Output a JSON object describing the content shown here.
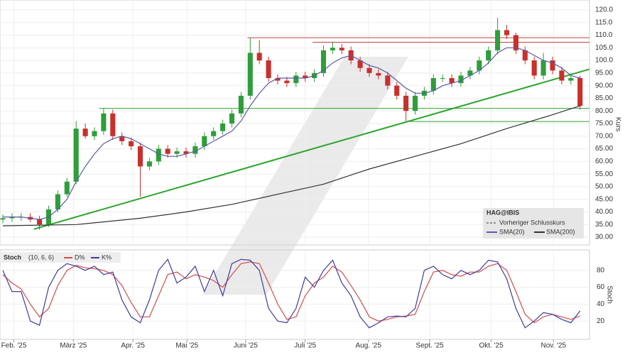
{
  "chart_data": [
    {
      "type": "candlestick",
      "symbol": "HAG@IBIS",
      "y_label": "Kurs",
      "legend_note": "Vorheriger Schlusskurs",
      "up_color": "#2e9e3a",
      "down_color": "#c8302c",
      "grid": true,
      "xlim": [
        0,
        64
      ],
      "ylim": [
        27,
        123
      ],
      "yticks": [
        {
          "value": 30,
          "label": "30.00"
        },
        {
          "value": 35,
          "label": "35.00"
        },
        {
          "value": 40,
          "label": "40.00"
        },
        {
          "value": 45,
          "label": "45.00"
        },
        {
          "value": 50,
          "label": "50.00"
        },
        {
          "value": 55,
          "label": "55.00"
        },
        {
          "value": 60,
          "label": "60.00"
        },
        {
          "value": 65,
          "label": "65.00"
        },
        {
          "value": 70,
          "label": "70.00"
        },
        {
          "value": 75,
          "label": "75.00"
        },
        {
          "value": 80,
          "label": "80.00"
        },
        {
          "value": 85,
          "label": "85.00"
        },
        {
          "value": 90,
          "label": "90.00"
        },
        {
          "value": 95,
          "label": "95.00"
        },
        {
          "value": 100,
          "label": "100.0"
        },
        {
          "value": 105,
          "label": "105.0"
        },
        {
          "value": 110,
          "label": "110.0"
        },
        {
          "value": 115,
          "label": "115.0"
        },
        {
          "value": 120,
          "label": "120.0"
        }
      ],
      "open": [
        37,
        37.5,
        38,
        38,
        37,
        35,
        41,
        47,
        52,
        73,
        70,
        72,
        79,
        70,
        68,
        66,
        58,
        60,
        65,
        63,
        64,
        63,
        66,
        70,
        72,
        75,
        79,
        86,
        103,
        100,
        93,
        92,
        91,
        94,
        93,
        95,
        104,
        105,
        104,
        100,
        97,
        95,
        94,
        90,
        86,
        80,
        86,
        88,
        93,
        93,
        91,
        94,
        96,
        100,
        104,
        112,
        110,
        104,
        100,
        94,
        100,
        96,
        92,
        93
      ],
      "high": [
        39,
        39.5,
        39.5,
        39.5,
        38.5,
        42.5,
        48.5,
        53.5,
        76,
        75,
        73.5,
        81,
        80.5,
        71.5,
        69.5,
        67.5,
        61.5,
        66.5,
        66.5,
        65.5,
        65.5,
        67.5,
        71.5,
        73.5,
        76.5,
        80.5,
        87.5,
        109,
        108,
        101.5,
        94.5,
        93.5,
        95.5,
        95.5,
        96.5,
        106,
        107.5,
        106.5,
        105.5,
        101.5,
        98.5,
        96.5,
        95.5,
        91.5,
        87.5,
        87.5,
        89.5,
        94.5,
        94.5,
        94.5,
        95.5,
        97.5,
        101.5,
        105.5,
        117,
        114,
        111,
        105.5,
        101.5,
        103,
        101.5,
        97.5,
        95,
        94
      ],
      "low": [
        35.5,
        36,
        36.5,
        36,
        33,
        34,
        40,
        46,
        51,
        69,
        68.5,
        70.5,
        68.5,
        66.5,
        64.5,
        46,
        56.5,
        58.5,
        61.5,
        61.5,
        61.5,
        61.5,
        64.5,
        68.5,
        70.5,
        73.5,
        77.5,
        84.5,
        98.5,
        91.5,
        90.5,
        89.5,
        89.5,
        91.5,
        91.5,
        93.5,
        102.5,
        102.5,
        98.5,
        95.5,
        93.5,
        92.5,
        88.5,
        84.5,
        76,
        78.5,
        84.5,
        86.5,
        91.5,
        89.5,
        89.5,
        92.5,
        94.5,
        98.5,
        102.5,
        108.5,
        102.5,
        98.5,
        92.5,
        92.5,
        94.5,
        90.5,
        90.5,
        80.5
      ],
      "close": [
        37.5,
        38,
        38,
        37,
        35,
        41,
        47,
        52,
        73,
        70,
        72,
        79,
        70,
        68,
        66,
        58,
        60,
        65,
        63,
        64,
        63,
        66,
        70,
        72,
        75,
        79,
        86,
        103,
        100,
        93,
        92,
        91,
        94,
        93,
        95,
        104,
        105,
        104,
        100,
        97,
        95,
        94,
        90,
        86,
        80,
        86,
        88,
        93,
        93,
        91,
        94,
        96,
        100,
        104,
        112,
        110,
        104,
        100,
        94,
        100,
        96,
        92,
        93,
        82
      ],
      "series": [
        {
          "name": "SMA(20)",
          "color": "#5a5aa8",
          "values": [
            38,
            38,
            38,
            37.5,
            37,
            38,
            41,
            45,
            52,
            58,
            63,
            67,
            69,
            70,
            69,
            67,
            65,
            63,
            62,
            62,
            63,
            64,
            66,
            68,
            70,
            72,
            76,
            82,
            87,
            91,
            93,
            93,
            93,
            93,
            94,
            96,
            99,
            101,
            102,
            100,
            98,
            97,
            95,
            92,
            89,
            87,
            87,
            88,
            90,
            91,
            92,
            94,
            96,
            99,
            103,
            105,
            105,
            104,
            102,
            100,
            99,
            97,
            94,
            93
          ]
        },
        {
          "name": "SMA(200)",
          "color": "#333333",
          "x": [
            0,
            8,
            15,
            20,
            25,
            30,
            35,
            40,
            45,
            50,
            55,
            60,
            63
          ],
          "values": [
            34.5,
            35,
            37.5,
            40,
            43,
            47,
            51,
            57,
            62,
            67,
            73,
            78.5,
            82
          ]
        }
      ],
      "trendlines": [
        {
          "color": "#2aa52a",
          "x": [
            3.4,
            64
          ],
          "values": [
            33.2,
            96.5
          ]
        },
        {
          "color": "#2aa52a",
          "x": [
            10.5,
            64
          ],
          "values": [
            81,
            81
          ]
        },
        {
          "color": "#2aa52a",
          "x": [
            44.3,
            64
          ],
          "values": [
            75.8,
            75.8
          ]
        },
        {
          "color": "#c04040",
          "x": [
            26.7,
            64
          ],
          "values": [
            109,
            109
          ]
        },
        {
          "color": "#c04040",
          "x": [
            33.8,
            64
          ],
          "values": [
            107.2,
            107.2
          ]
        }
      ]
    },
    {
      "type": "line",
      "title": "Stoch",
      "params": "(10, 6, 6)",
      "y_label": "Stoch",
      "grid": true,
      "xlim": [
        0,
        64
      ],
      "ylim": [
        0,
        100
      ],
      "yticks": [
        20,
        40,
        60,
        80
      ],
      "xticks": [
        {
          "value": 1.2,
          "label": "Feb. '25"
        },
        {
          "value": 7.7,
          "label": "März '25"
        },
        {
          "value": 14.2,
          "label": "Apr. '25"
        },
        {
          "value": 20.1,
          "label": "Mai '25"
        },
        {
          "value": 26.5,
          "label": "Juni '25"
        },
        {
          "value": 33,
          "label": "Juli '25"
        },
        {
          "value": 39.9,
          "label": "Aug. '25"
        },
        {
          "value": 46.6,
          "label": "Sept. '25"
        },
        {
          "value": 53.3,
          "label": "Okt. '25"
        },
        {
          "value": 60.1,
          "label": "Nov. '25"
        }
      ],
      "series": [
        {
          "name": "D%",
          "color": "#d94a4a",
          "values": [
            75,
            65,
            58,
            40,
            25,
            35,
            62,
            80,
            86,
            83,
            82,
            80,
            75,
            62,
            42,
            25,
            25,
            50,
            75,
            78,
            70,
            75,
            72,
            68,
            60,
            75,
            88,
            90,
            88,
            65,
            40,
            22,
            25,
            50,
            65,
            72,
            85,
            78,
            62,
            45,
            25,
            20,
            22,
            25,
            26,
            28,
            55,
            78,
            80,
            75,
            73,
            78,
            78,
            85,
            88,
            80,
            55,
            28,
            18,
            25,
            28,
            25,
            22,
            26
          ]
        },
        {
          "name": "K%",
          "color": "#3d3d9e",
          "values": [
            80,
            55,
            55,
            20,
            15,
            60,
            80,
            88,
            85,
            80,
            85,
            75,
            78,
            45,
            25,
            18,
            45,
            80,
            93,
            65,
            72,
            85,
            55,
            80,
            50,
            88,
            93,
            92,
            80,
            35,
            20,
            18,
            35,
            72,
            60,
            80,
            92,
            65,
            50,
            25,
            12,
            18,
            25,
            26,
            25,
            35,
            80,
            85,
            75,
            70,
            80,
            75,
            80,
            92,
            90,
            70,
            35,
            12,
            20,
            30,
            28,
            22,
            18,
            32
          ]
        }
      ]
    }
  ]
}
